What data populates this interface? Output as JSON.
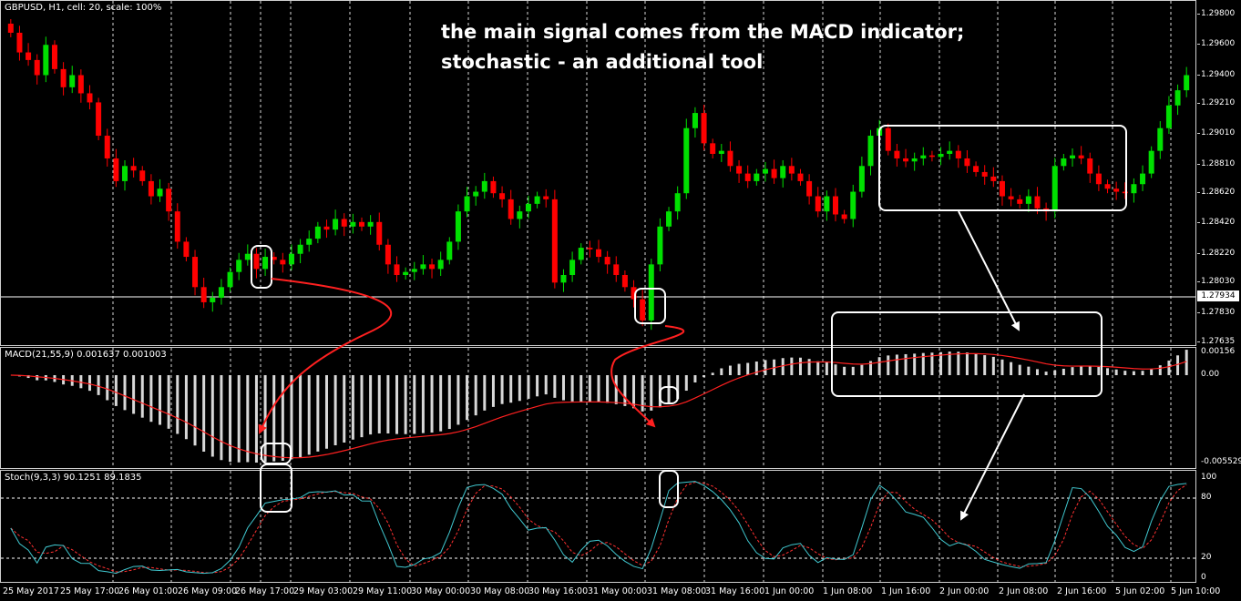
{
  "main_panel": {
    "label": "GBPUSD, H1, cell: 20, scale: 100%",
    "price_scale": [
      "1.29800",
      "1.29600",
      "1.29400",
      "1.29210",
      "1.29010",
      "1.28810",
      "1.28620",
      "1.28420",
      "1.28220",
      "1.28030",
      "1.27830",
      "1.27635"
    ],
    "current_price": "1.27934",
    "annotation_line1": "the main signal comes from the MACD indicator;",
    "annotation_line2": "stochastic - an additional tool"
  },
  "macd_panel": {
    "label": "MACD(21,55,9) 0.001637 0.001003",
    "scale": [
      "0.00156",
      "0.00",
      "-0.005529"
    ]
  },
  "stoch_panel": {
    "label": "Stoch(9,3,3) 90.1251 89.1835",
    "scale": [
      "100",
      "80",
      "20",
      "0"
    ]
  },
  "time_axis": [
    "25 May 2017",
    "25 May 17:00",
    "26 May 01:00",
    "26 May 09:00",
    "26 May 17:00",
    "29 May 03:00",
    "29 May 11:00",
    "30 May 00:00",
    "30 May 08:00",
    "30 May 16:00",
    "31 May 00:00",
    "31 May 08:00",
    "31 May 16:00",
    "1 Jun 00:00",
    "1 Jun 08:00",
    "1 Jun 16:00",
    "2 Jun 00:00",
    "2 Jun 08:00",
    "2 Jun 16:00",
    "5 Jun 02:00",
    "5 Jun 10:00"
  ],
  "colors": {
    "bull": "#00e000",
    "bear": "#ff0000",
    "macd_hist": "#d8d8d8",
    "signal": "#ff2020",
    "stoch_main": "#40c8d0",
    "stoch_signal": "#ff3030",
    "grid": "#ffffff",
    "annotation": "#ffffff",
    "arrow_red": "#ff2020"
  },
  "chart_data": {
    "type": "candlestick",
    "title": "GBPUSD, H1",
    "ylim": [
      1.2763,
      1.299
    ],
    "closes": [
      1.2968,
      1.2955,
      1.295,
      1.294,
      1.296,
      1.2944,
      1.2932,
      1.294,
      1.2928,
      1.2922,
      1.29,
      1.2885,
      1.287,
      1.288,
      1.2877,
      1.287,
      1.286,
      1.2865,
      1.285,
      1.283,
      1.282,
      1.28,
      1.279,
      1.2793,
      1.28,
      1.281,
      1.2818,
      1.2822,
      1.2812,
      1.282,
      1.2818,
      1.2815,
      1.2822,
      1.2828,
      1.2832,
      1.284,
      1.2838,
      1.2845,
      1.284,
      1.2843,
      1.284,
      1.2843,
      1.2828,
      1.2815,
      1.2808,
      1.281,
      1.2812,
      1.2815,
      1.2812,
      1.2818,
      1.283,
      1.285,
      1.286,
      1.2863,
      1.287,
      1.2862,
      1.2858,
      1.2845,
      1.285,
      1.2855,
      1.286,
      1.2858,
      1.2803,
      1.2808,
      1.2818,
      1.2826,
      1.2825,
      1.282,
      1.2815,
      1.2808,
      1.28,
      1.2792,
      1.2778,
      1.2815,
      1.284,
      1.285,
      1.2862,
      1.2905,
      1.2915,
      1.2895,
      1.2888,
      1.289,
      1.288,
      1.2875,
      1.287,
      1.2875,
      1.2878,
      1.2872,
      1.288,
      1.2875,
      1.287,
      1.286,
      1.285,
      1.286,
      1.2848,
      1.2845,
      1.2863,
      1.288,
      1.29,
      1.2905,
      1.289,
      1.2885,
      1.2883,
      1.2885,
      1.2887,
      1.2886,
      1.2888,
      1.289,
      1.2885,
      1.288,
      1.2876,
      1.2873,
      1.287,
      1.286,
      1.2858,
      1.2855,
      1.286,
      1.2852,
      1.285,
      1.288,
      1.2885,
      1.2887,
      1.2885,
      1.2875,
      1.2868,
      1.2865,
      1.2863,
      1.2862,
      1.2868,
      1.2875,
      1.289,
      1.2905,
      1.292,
      1.293,
      1.294
    ]
  }
}
